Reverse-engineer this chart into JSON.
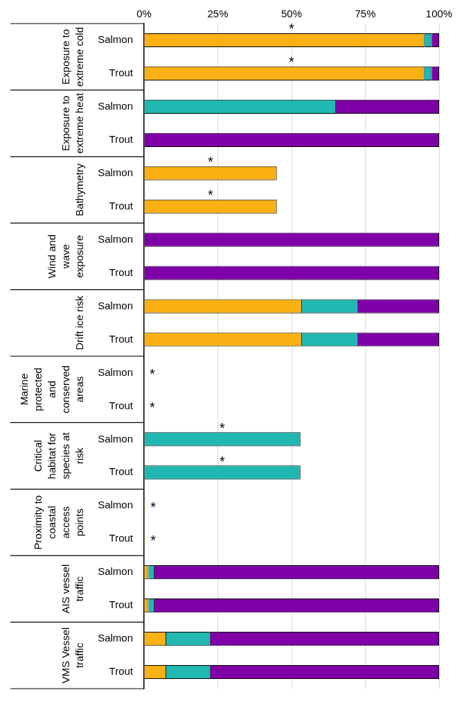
{
  "chart_data": {
    "type": "bar",
    "orientation": "horizontal",
    "stacked": true,
    "categories": [
      "Salmon",
      "Trout",
      "Salmon",
      "Trout",
      "Salmon",
      "Trout",
      "Salmon",
      "Trout",
      "Salmon",
      "Trout",
      "Salmon",
      "Trout",
      "Salmon",
      "Trout",
      "Salmon",
      "Trout",
      "Salmon",
      "Trout",
      "Salmon",
      "Trout"
    ],
    "series": [
      {
        "color": "#fbb013",
        "values": [
          95,
          95,
          0,
          0,
          45,
          45,
          0,
          0,
          53.5,
          53.5,
          0,
          0,
          0,
          0,
          0.3,
          0.3,
          1.5,
          1.5,
          7.5,
          7.5
        ],
        "value_labels": [
          "*",
          "*",
          null,
          null,
          "*",
          "*",
          null,
          null,
          null,
          null,
          "*",
          "*",
          null,
          null,
          "*",
          "*",
          null,
          null,
          null,
          null
        ]
      },
      {
        "color": "#20b8b0",
        "values": [
          2.5,
          2.5,
          65,
          0,
          0,
          0,
          0,
          0,
          19,
          19,
          0,
          0,
          53,
          53,
          0,
          0,
          2,
          2,
          15,
          15
        ],
        "value_labels": [
          null,
          null,
          null,
          null,
          null,
          null,
          null,
          null,
          null,
          null,
          null,
          null,
          "*",
          "*",
          null,
          null,
          null,
          null,
          null,
          null
        ]
      },
      {
        "color": "#8000a8",
        "values": [
          2.5,
          2.5,
          35,
          100,
          0,
          0,
          100,
          100,
          27.5,
          27.5,
          0,
          0,
          0,
          0,
          0,
          0,
          96.5,
          96.5,
          77.5,
          77.5
        ]
      }
    ],
    "xlim": [
      0,
      100
    ],
    "xticks": [
      {
        "value": 0,
        "label": "0%"
      },
      {
        "value": 25,
        "label": "25%"
      },
      {
        "value": 50,
        "label": "50%"
      },
      {
        "value": 75,
        "label": "75%"
      },
      {
        "value": 100,
        "label": "100%"
      }
    ],
    "grid": "x",
    "legend": false,
    "annotations": [
      "Exposure to extreme cold",
      "Exposure to extreme heat",
      "Bathymetry",
      "Wind and wave exposure",
      "Drift ice risk",
      "Marine protected and conserved areas",
      "Critical habitat for species at risk",
      "Proximity to coastal access points",
      "AIS vessel traffic",
      "VMS Vessel traffic"
    ]
  }
}
